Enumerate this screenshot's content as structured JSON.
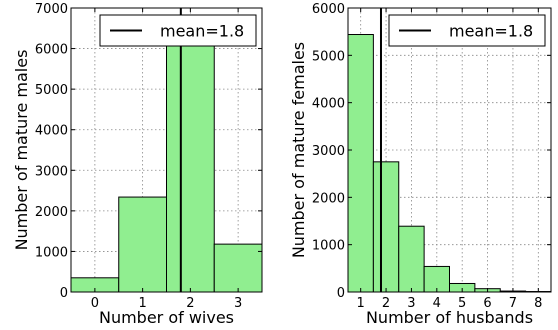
{
  "chart_data": [
    {
      "type": "bar",
      "x_centers": [
        0,
        1,
        2,
        3
      ],
      "values": [
        350,
        2340,
        6080,
        1180
      ],
      "bar_width": 1,
      "xlim": [
        -0.5,
        3.5
      ],
      "ylim": [
        0,
        7000
      ],
      "xticks": [
        0,
        1,
        2,
        3
      ],
      "xtick_labels": [
        "0",
        "1",
        "2",
        "3"
      ],
      "yticks": [
        0,
        1000,
        2000,
        3000,
        4000,
        5000,
        6000,
        7000
      ],
      "ytick_labels": [
        "0",
        "1000",
        "2000",
        "3000",
        "4000",
        "5000",
        "6000",
        "7000"
      ],
      "xlabel": "Number of wives",
      "ylabel": "Number of mature males",
      "mean": 1.8,
      "legend_label": "mean=1.8",
      "legend_position": "top-right",
      "grid": true,
      "bar_color": "#90ee90"
    },
    {
      "type": "bar",
      "x_centers": [
        1,
        2,
        3,
        4,
        5,
        6,
        7,
        8
      ],
      "values": [
        5440,
        2750,
        1390,
        540,
        180,
        70,
        20,
        10
      ],
      "bar_width": 1,
      "xlim": [
        0.5,
        8.5
      ],
      "ylim": [
        0,
        6000
      ],
      "xticks": [
        1,
        2,
        3,
        4,
        5,
        6,
        7,
        8
      ],
      "xtick_labels": [
        "1",
        "2",
        "3",
        "4",
        "5",
        "6",
        "7",
        "8"
      ],
      "yticks": [
        0,
        1000,
        2000,
        3000,
        4000,
        5000,
        6000
      ],
      "ytick_labels": [
        "0",
        "1000",
        "2000",
        "3000",
        "4000",
        "5000",
        "6000"
      ],
      "xlabel": "Number of husbands",
      "ylabel": "Number of mature females",
      "mean": 1.8,
      "legend_label": "mean=1.8",
      "legend_position": "top-right",
      "grid": true,
      "bar_color": "#90ee90"
    }
  ]
}
